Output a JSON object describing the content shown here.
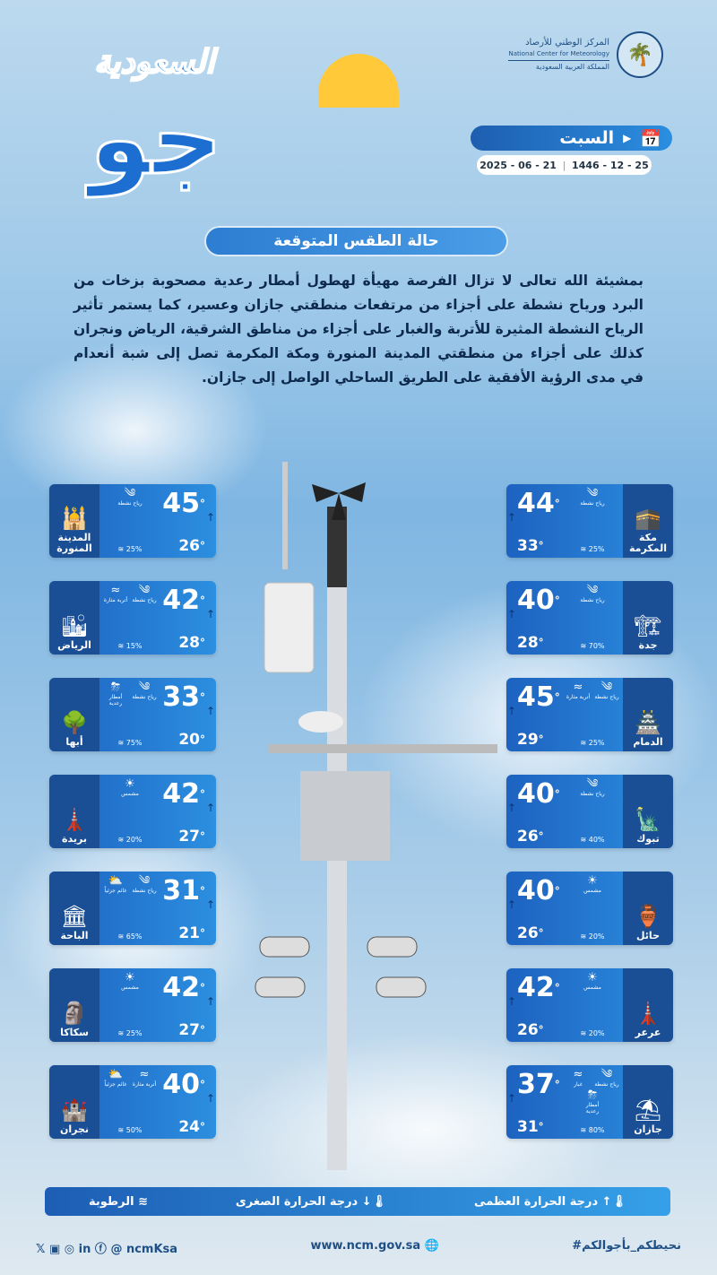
{
  "org": {
    "name_ar": "المركز الوطني للأرصاد",
    "name_en": "National Center for Meteorology",
    "country": "المملكة العربية السعودية"
  },
  "logo": {
    "main": "جو",
    "sub": "السعودية"
  },
  "day": "السبت",
  "date_hijri": "1446 - 12 - 25",
  "date_gregorian": "2025 - 06 - 21",
  "section_title": "حالة الطقس المتوقعة",
  "forecast_text": "بمشيئة الله تعالى لا تزال الفرصة مهيأة لهطول أمطار رعدية مصحوبة بزخات من البرد ورياح نشطة على أجزاء من مرتفعات منطقتي جازان وعسير، كما يستمر تأثير الرياح النشطة المثيرة للأتربة والغبار على أجزاء من مناطق الشرقية، الرياض ونجران كذلك على أجزاء من منطقتي المدينة المنورة ومكة المكرمة تصل إلى شبة أنعدام في مدى الرؤية الأفقية على الطريق الساحلي الواصل إلى جازان.",
  "cities_left": [
    {
      "city": "المدينة المنورة",
      "max": "45",
      "min": "26",
      "humidity": "25%",
      "conditions": [
        {
          "icon": "wind-icon",
          "label": "رياح نشطة"
        }
      ]
    },
    {
      "city": "الرياض",
      "max": "42",
      "min": "28",
      "humidity": "15%",
      "conditions": [
        {
          "icon": "wind-icon",
          "label": "رياح نشطة"
        },
        {
          "icon": "dust-icon",
          "label": "أتربة مثارة"
        }
      ]
    },
    {
      "city": "أبها",
      "max": "33",
      "min": "20",
      "humidity": "75%",
      "conditions": [
        {
          "icon": "wind-icon",
          "label": "رياح نشطة"
        },
        {
          "icon": "thunderstorm-icon",
          "label": "أمطار رعدية"
        }
      ]
    },
    {
      "city": "بريدة",
      "max": "42",
      "min": "27",
      "humidity": "20%",
      "conditions": [
        {
          "icon": "sun-icon",
          "label": "مشمس"
        }
      ]
    },
    {
      "city": "الباحة",
      "max": "31",
      "min": "21",
      "humidity": "65%",
      "conditions": [
        {
          "icon": "wind-icon",
          "label": "رياح نشطة"
        },
        {
          "icon": "partly-cloudy-icon",
          "label": "غائم جزئياً"
        }
      ]
    },
    {
      "city": "سكاكا",
      "max": "42",
      "min": "27",
      "humidity": "25%",
      "conditions": [
        {
          "icon": "sun-icon",
          "label": "مشمس"
        }
      ]
    },
    {
      "city": "نجران",
      "max": "40",
      "min": "24",
      "humidity": "50%",
      "conditions": [
        {
          "icon": "dust-icon",
          "label": "أتربة مثارة"
        },
        {
          "icon": "partly-cloudy-icon",
          "label": "غائم جزئياً"
        }
      ]
    }
  ],
  "cities_right": [
    {
      "city": "مكة المكرمة",
      "max": "44",
      "min": "33",
      "humidity": "25%",
      "conditions": [
        {
          "icon": "wind-icon",
          "label": "رياح نشطة"
        }
      ]
    },
    {
      "city": "جدة",
      "max": "40",
      "min": "28",
      "humidity": "70%",
      "conditions": [
        {
          "icon": "wind-icon",
          "label": "رياح نشطة"
        }
      ]
    },
    {
      "city": "الدمام",
      "max": "45",
      "min": "29",
      "humidity": "25%",
      "conditions": [
        {
          "icon": "wind-icon",
          "label": "رياح نشطة"
        },
        {
          "icon": "dust-icon",
          "label": "أتربة مثارة"
        }
      ]
    },
    {
      "city": "تبوك",
      "max": "40",
      "min": "26",
      "humidity": "40%",
      "conditions": [
        {
          "icon": "wind-icon",
          "label": "رياح نشطة"
        }
      ]
    },
    {
      "city": "حائل",
      "max": "40",
      "min": "26",
      "humidity": "20%",
      "conditions": [
        {
          "icon": "sun-icon",
          "label": "مشمس"
        }
      ]
    },
    {
      "city": "عرعر",
      "max": "42",
      "min": "26",
      "humidity": "20%",
      "conditions": [
        {
          "icon": "sun-icon",
          "label": "مشمس"
        }
      ]
    },
    {
      "city": "جازان",
      "max": "37",
      "min": "31",
      "humidity": "80%",
      "conditions": [
        {
          "icon": "wind-icon",
          "label": "رياح نشطة"
        },
        {
          "icon": "dust-icon",
          "label": "غبار"
        },
        {
          "icon": "thunderstorm-icon",
          "label": "أمطار رعدية"
        }
      ]
    }
  ],
  "legend": {
    "max": "درجة الحرارة العظمى",
    "min": "درجة الحرارة الصغرى",
    "humidity": "الرطوبة"
  },
  "footer": {
    "hashtag": "#نحيطكم_بأجوالكم",
    "website": "www.ncm.gov.sa",
    "handle": "ncmKsa"
  },
  "colors": {
    "card": "#2c8fe0",
    "dark": "#1b4f95",
    "sun": "#ffc93a"
  }
}
